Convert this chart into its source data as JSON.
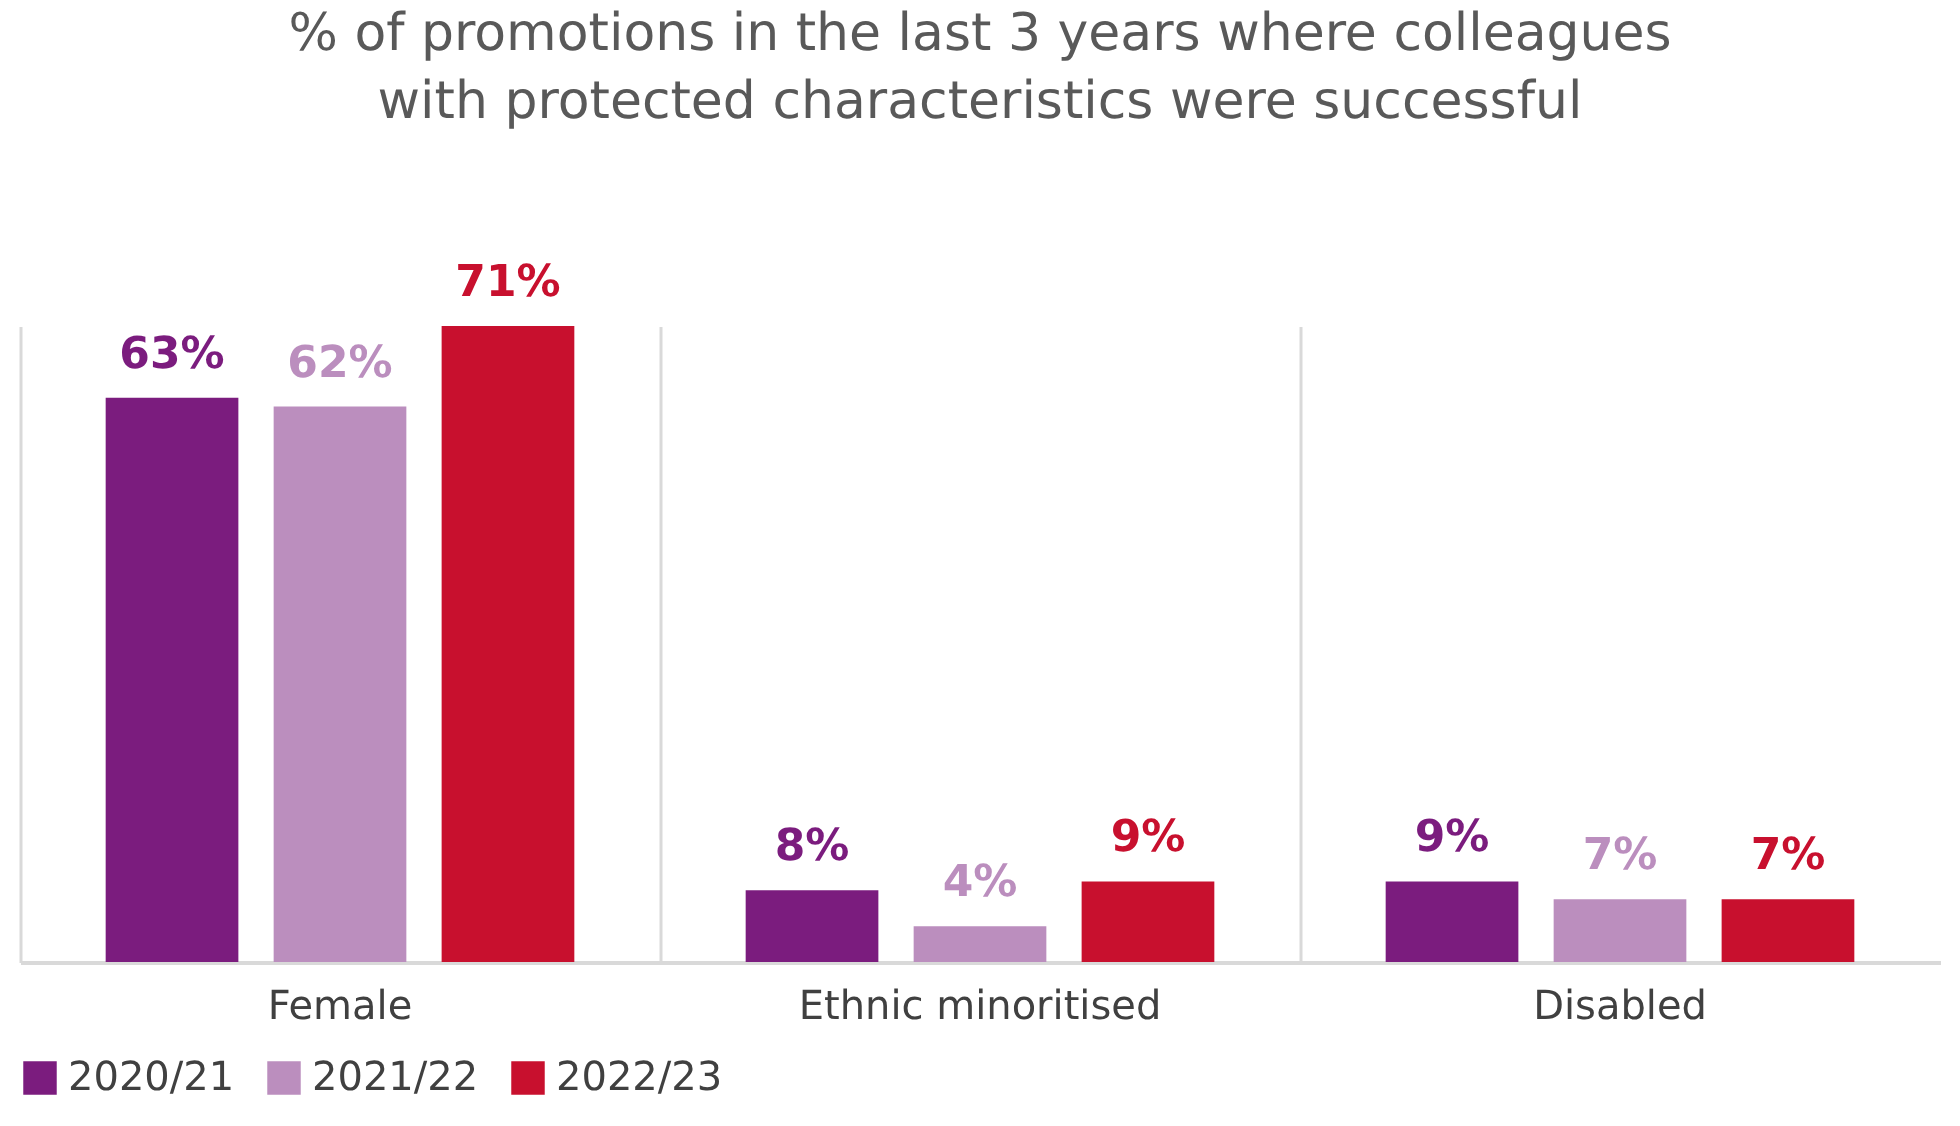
{
  "chart_data": {
    "type": "bar",
    "title": "% of promotions in the last 3 years where colleagues\nwith protected characteristics were successful",
    "categories": [
      "Female",
      "Ethnic minoritised",
      "Disabled"
    ],
    "series": [
      {
        "name": "2020/21",
        "color": "#7b1c7e",
        "values": [
          63,
          8,
          9
        ],
        "value_labels": [
          "63%",
          "8%",
          "9%"
        ]
      },
      {
        "name": "2021/22",
        "color": "#bb8ebe",
        "values": [
          62,
          4,
          7
        ],
        "value_labels": [
          "62%",
          "4%",
          "7%"
        ]
      },
      {
        "name": "2022/23",
        "color": "#c8102e",
        "values": [
          71,
          9,
          7
        ],
        "value_labels": [
          "71%",
          "9%",
          "7%"
        ]
      }
    ],
    "grid": "x",
    "legend": "bottom"
  }
}
